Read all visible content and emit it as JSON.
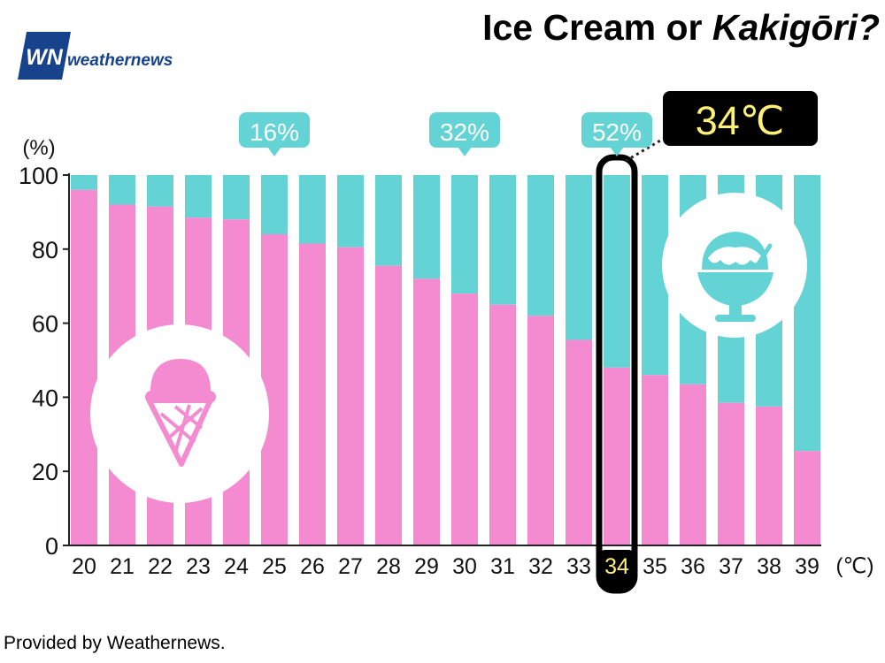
{
  "header": {
    "title_main": "Ice Cream or ",
    "title_italic": "Kakigōri?"
  },
  "brand": {
    "logo_mark": "WN",
    "logo_text": "weathernews"
  },
  "footer": {
    "credit": "Provided by Weathernews."
  },
  "colors": {
    "ice_cream": "#f48ad0",
    "kakigori": "#64d3d6",
    "highlight_frame": "#000000",
    "highlight_text": "#fff176",
    "logo_blue": "#17428c"
  },
  "icons": {
    "ice_cream": "ice-cream-cone-icon",
    "kakigori": "shaved-ice-icon"
  },
  "chart_data": {
    "type": "bar",
    "stacked": true,
    "categories": [
      "20",
      "21",
      "22",
      "23",
      "24",
      "25",
      "26",
      "27",
      "28",
      "29",
      "30",
      "31",
      "32",
      "33",
      "34",
      "35",
      "36",
      "37",
      "38",
      "39"
    ],
    "series": [
      {
        "values": [
          96,
          92,
          91.5,
          88.5,
          88,
          84,
          81.5,
          80.5,
          75.5,
          72,
          68,
          65,
          62,
          55.5,
          48,
          46,
          43.5,
          38.5,
          37.5,
          25.5
        ]
      },
      {
        "values": [
          4,
          8,
          8.5,
          11.5,
          12,
          16,
          18.5,
          19.5,
          24.5,
          28,
          32,
          35,
          38,
          44.5,
          52,
          54,
          56.5,
          61.5,
          62.5,
          74.5
        ]
      }
    ],
    "ylim": [
      0,
      100
    ],
    "yticks": [
      "0",
      "20",
      "40",
      "60",
      "80",
      "100"
    ],
    "ylabel": "(%)",
    "xlabel": "(℃)",
    "callouts": [
      {
        "category": "25",
        "label": "16%"
      },
      {
        "category": "30",
        "label": "32%"
      },
      {
        "category": "34",
        "label": "52%"
      }
    ],
    "highlight": {
      "category": "34",
      "label": "34℃"
    },
    "grid": false,
    "legend": "none"
  }
}
